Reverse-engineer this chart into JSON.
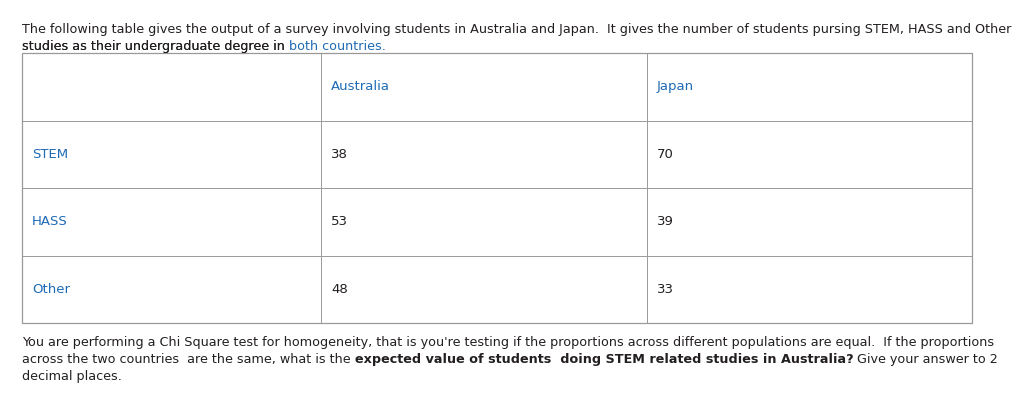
{
  "intro_line1_black": "The following table gives the output of a survey involving students in Australia and Japan.  It gives the number of students pursing STEM, HASS and Other",
  "intro_line2_black": "studies as their undergraduate degree in ",
  "intro_line2_blue": "both countries.",
  "col_headers": [
    "",
    "Australia",
    "Japan"
  ],
  "rows": [
    [
      "STEM",
      "38",
      "70"
    ],
    [
      "HASS",
      "53",
      "39"
    ],
    [
      "Other",
      "48",
      "33"
    ]
  ],
  "q_line1": "You are performing a Chi Square test for homogeneity, that is you're testing if the proportions across different populations are equal.  If the proportions",
  "q_line2_normal1": "across the two countries  are the same, what is the ",
  "q_line2_bold": "expected value of students  doing STEM related studies in Australia?",
  "q_line2_normal2": " Give your answer to 2",
  "q_line3": "decimal places.",
  "text_color_black": "#231F20",
  "text_color_blue": "#1F6BB5",
  "table_border_color": "#999999",
  "bg_color": "#ffffff",
  "font_size": 9.2
}
